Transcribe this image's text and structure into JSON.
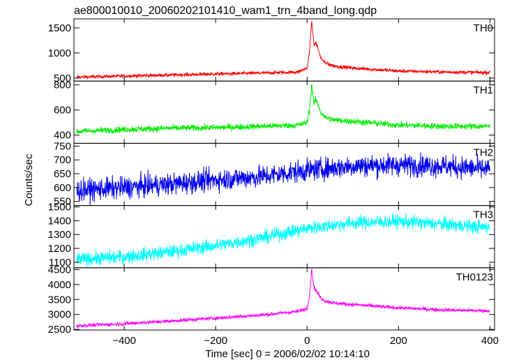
{
  "title": "ae800010010_20060202101410_wam1_trn_4band_long.qdp",
  "xlabel": "Time [sec] 0 = 2006/02/02 10:14:10",
  "ylabel": "Counts/sec",
  "chart_data": {
    "type": "line",
    "title": "ae800010010_20060202101410_wam1_trn_4band_long.qdp",
    "xlabel": "Time [sec] 0 = 2006/02/02 10:14:10",
    "ylabel": "Counts/sec",
    "xlim": [
      -510,
      410
    ],
    "xticks": [
      -400,
      -200,
      0,
      200,
      400
    ],
    "xticklabels": [
      "−400",
      "−200",
      "0",
      "200",
      "400"
    ],
    "panels": [
      {
        "name": "TH0",
        "color": "#ff0000",
        "ylim": [
          440,
          1680
        ],
        "yticks": [
          500,
          1000,
          1500
        ],
        "yticklabels": [
          "500",
          "1000",
          "1500"
        ],
        "x": [
          -500,
          -400,
          -300,
          -200,
          -100,
          -20,
          0,
          5,
          10,
          15,
          20,
          30,
          40,
          60,
          100,
          200,
          300,
          400
        ],
        "values": [
          520,
          540,
          560,
          580,
          600,
          620,
          700,
          1000,
          1650,
          1150,
          1200,
          900,
          800,
          740,
          700,
          640,
          620,
          610
        ],
        "noise": 25
      },
      {
        "name": "TH1",
        "color": "#00ee00",
        "ylim": [
          335,
          830
        ],
        "yticks": [
          400,
          600,
          800
        ],
        "yticklabels": [
          "400",
          "600",
          "800"
        ],
        "x": [
          -500,
          -400,
          -300,
          -200,
          -100,
          -20,
          0,
          5,
          10,
          15,
          20,
          30,
          40,
          60,
          100,
          200,
          300,
          400
        ],
        "values": [
          430,
          445,
          455,
          460,
          470,
          480,
          500,
          600,
          800,
          660,
          680,
          580,
          540,
          520,
          510,
          480,
          470,
          470
        ],
        "noise": 18
      },
      {
        "name": "TH2",
        "color": "#0000ee",
        "ylim": [
          535,
          760
        ],
        "yticks": [
          550,
          600,
          650,
          700,
          750
        ],
        "yticklabels": [
          "550",
          "600",
          "650",
          "700",
          "750"
        ],
        "x": [
          -500,
          -400,
          -300,
          -200,
          -100,
          0,
          100,
          200,
          300,
          400
        ],
        "values": [
          590,
          600,
          612,
          628,
          640,
          662,
          678,
          682,
          678,
          665
        ],
        "noise": 28
      },
      {
        "name": "TH3",
        "color": "#00ffff",
        "ylim": [
          1060,
          1510
        ],
        "yticks": [
          1100,
          1200,
          1300,
          1400,
          1500
        ],
        "yticklabels": [
          "1100",
          "1200",
          "1300",
          "1400",
          "1500"
        ],
        "x": [
          -500,
          -400,
          -300,
          -200,
          -100,
          0,
          100,
          200,
          300,
          400
        ],
        "values": [
          1120,
          1140,
          1175,
          1220,
          1275,
          1345,
          1385,
          1395,
          1375,
          1350
        ],
        "noise": 35
      },
      {
        "name": "TH0123",
        "color": "#ff00ff",
        "ylim": [
          2480,
          4560
        ],
        "yticks": [
          2500,
          3000,
          3500,
          4000,
          4500
        ],
        "yticklabels": [
          "2500",
          "3000",
          "3500",
          "4000",
          "4500"
        ],
        "x": [
          -500,
          -400,
          -300,
          -200,
          -100,
          -20,
          0,
          5,
          10,
          15,
          20,
          30,
          40,
          60,
          100,
          200,
          300,
          400
        ],
        "values": [
          2620,
          2690,
          2780,
          2880,
          2980,
          3100,
          3200,
          3600,
          4500,
          3900,
          3800,
          3550,
          3450,
          3380,
          3330,
          3220,
          3150,
          3120
        ],
        "noise": 45
      }
    ]
  }
}
